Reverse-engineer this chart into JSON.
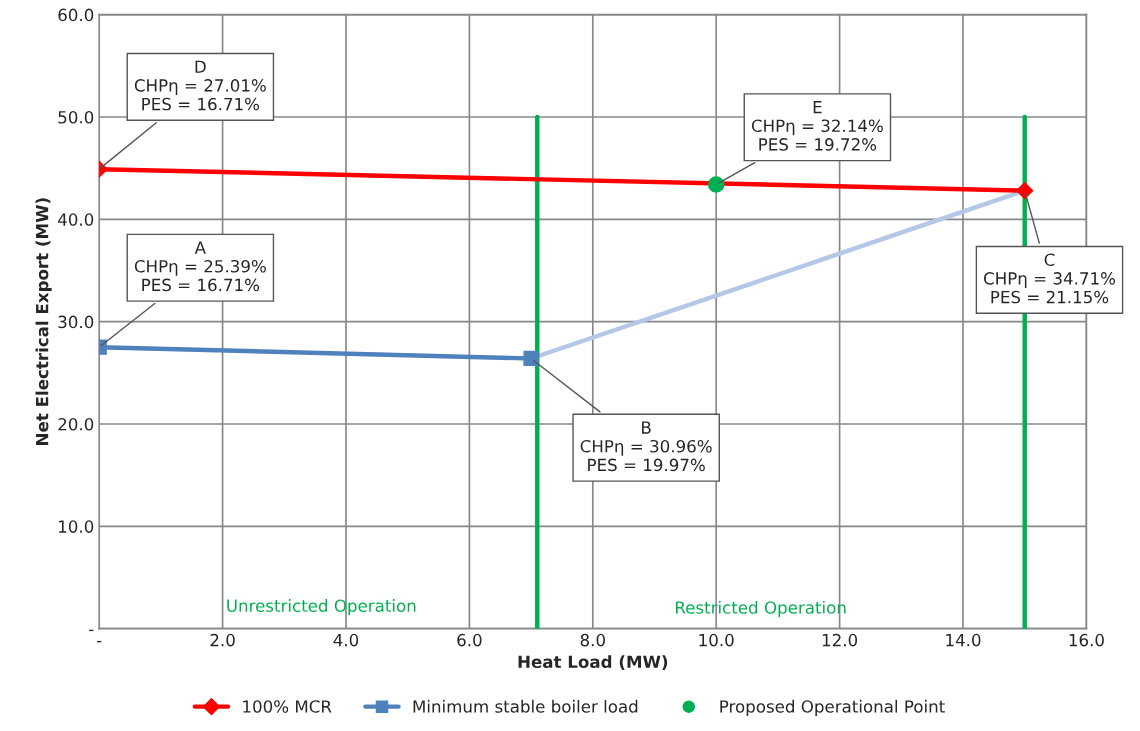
{
  "chart_data": {
    "type": "line",
    "xlabel": "Heat Load (MW)",
    "ylabel": "Net Electrical Export (MW)",
    "series": [
      {
        "name": "100% MCR",
        "color": "#ff0000",
        "x": [
          0,
          15
        ],
        "values": [
          44.9,
          42.8
        ],
        "marker": "diamond"
      },
      {
        "name": "Minimum stable boiler load",
        "color": "#4f81bd",
        "x": [
          0,
          7.0
        ],
        "values": [
          27.5,
          26.4
        ],
        "marker": "square"
      },
      {
        "color": "#b4c7e7",
        "x": [
          7.0,
          15
        ],
        "values": [
          26.4,
          42.8
        ]
      },
      {
        "name": "Proposed Operational Point",
        "type": "scatter",
        "color": "#00b050",
        "x": [
          10.0
        ],
        "values": [
          43.4
        ],
        "marker": "circle"
      },
      {
        "color": "#00b050",
        "x": [
          7.1,
          7.1
        ],
        "values": [
          0,
          50
        ]
      },
      {
        "color": "#00b050",
        "x": [
          15,
          15
        ],
        "values": [
          0,
          50
        ]
      }
    ],
    "annotations": [
      {
        "text": "D\nCHPη = 27.01%\nPES = 16.71%",
        "x": 0,
        "y": 44.9
      },
      {
        "text": "A\nCHPη = 25.39%\nPES = 16.71%",
        "x": 0,
        "y": 27.5
      },
      {
        "text": "B\nCHPη = 30.96%\nPES = 19.97%",
        "x": 7.0,
        "y": 26.4
      },
      {
        "text": "E\nCHPη = 32.14%\nPES = 19.72%",
        "x": 10.0,
        "y": 43.4
      },
      {
        "text": "C\nCHPη = 34.71%\nPES = 21.15%",
        "x": 15,
        "y": 42.8
      },
      "Unrestricted Operation",
      "Restricted Operation"
    ],
    "xlim": [
      0,
      16
    ],
    "xticks": [
      {
        "value": 0,
        "label": "-"
      },
      {
        "value": 2,
        "label": "2.0"
      },
      {
        "value": 4,
        "label": "4.0"
      },
      {
        "value": 6,
        "label": "6.0"
      },
      {
        "value": 8,
        "label": "8.0"
      },
      {
        "value": 10,
        "label": "10.0"
      },
      {
        "value": 12,
        "label": "12.0"
      },
      {
        "value": 14,
        "label": "14.0"
      },
      {
        "value": 16,
        "label": "16.0"
      }
    ],
    "ylim": [
      0,
      60
    ],
    "yticks": [
      {
        "value": 0,
        "label": "-"
      },
      {
        "value": 10,
        "label": "10.0"
      },
      {
        "value": 20,
        "label": "20.0"
      },
      {
        "value": 30,
        "label": "30.0"
      },
      {
        "value": 40,
        "label": "40.0"
      },
      {
        "value": 50,
        "label": "50.0"
      },
      {
        "value": 60,
        "label": "60.0"
      }
    ],
    "grid": true,
    "legend": "bottom"
  }
}
